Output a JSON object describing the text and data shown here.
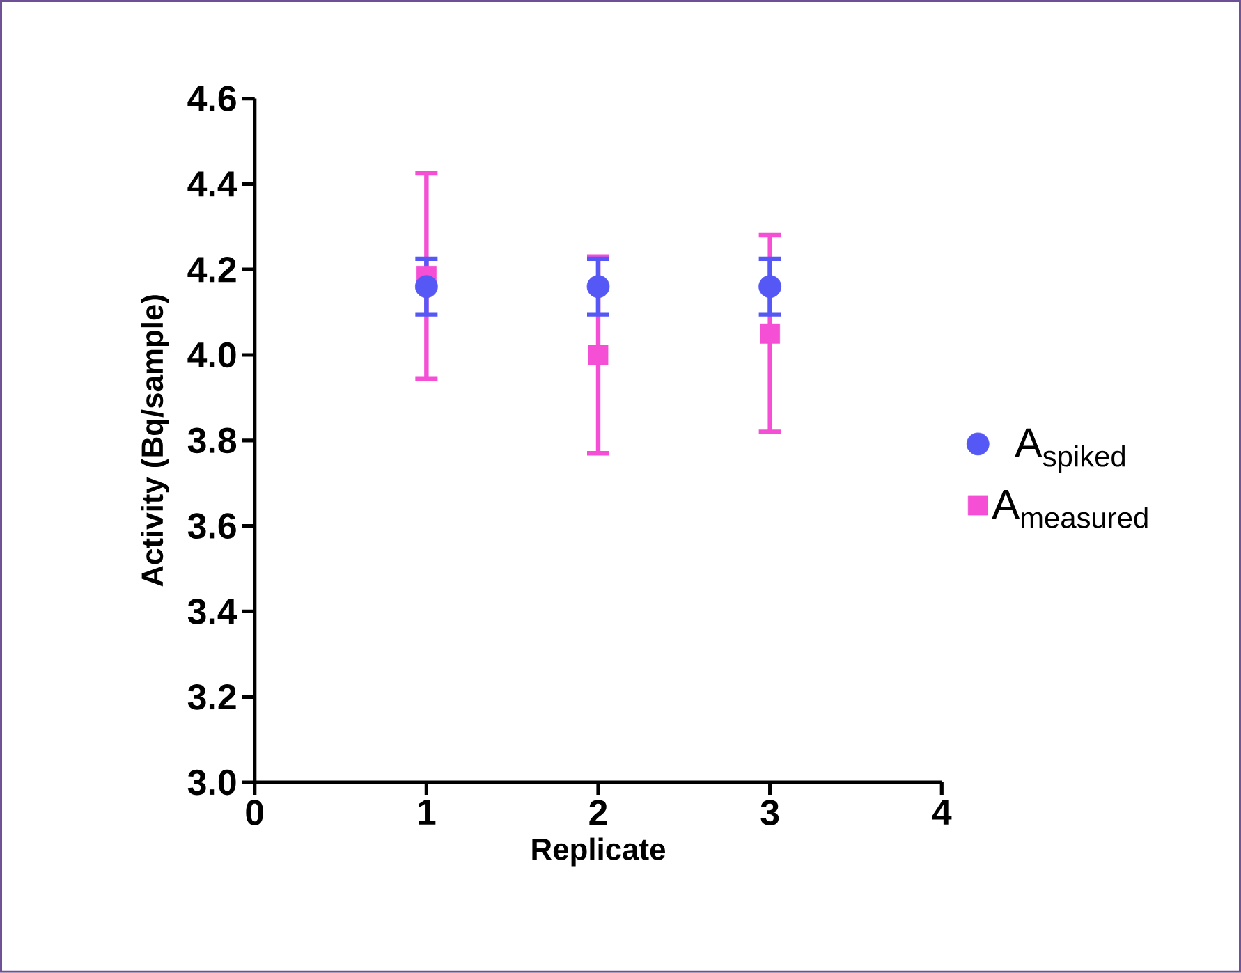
{
  "chart_data": {
    "type": "scatter",
    "xlabel": "Replicate",
    "ylabel": "Activity (Bq/sample)",
    "x": [
      1,
      2,
      3
    ],
    "series": [
      {
        "name": "A$_{spiked}$",
        "color": "#5558f5",
        "marker": "circle",
        "values": [
          4.16,
          4.16,
          4.16
        ],
        "errors": [
          0.065,
          0.065,
          0.065
        ]
      },
      {
        "name": "A$_{measured}$",
        "color": "#f54fd6",
        "marker": "square",
        "values": [
          4.185,
          4.0,
          4.05
        ],
        "errors": [
          0.24,
          0.23,
          0.23
        ]
      }
    ],
    "xlim": [
      0,
      4
    ],
    "xticks": [
      0,
      1,
      2,
      3,
      4
    ],
    "ylim": [
      3.0,
      4.6
    ],
    "yticks": [
      {
        "value": 3.0,
        "label": "3.0"
      },
      {
        "value": 3.2,
        "label": "3.2"
      },
      {
        "value": 3.4,
        "label": "3.4"
      },
      {
        "value": 3.6,
        "label": "3.6"
      },
      {
        "value": 3.8,
        "label": "3.8"
      },
      {
        "value": 4.0,
        "label": "4.0"
      },
      {
        "value": 4.2,
        "label": "4.2"
      },
      {
        "value": 4.4,
        "label": "4.4"
      },
      {
        "value": 4.6,
        "label": "4.6"
      }
    ],
    "grid": false,
    "legend": "right"
  }
}
